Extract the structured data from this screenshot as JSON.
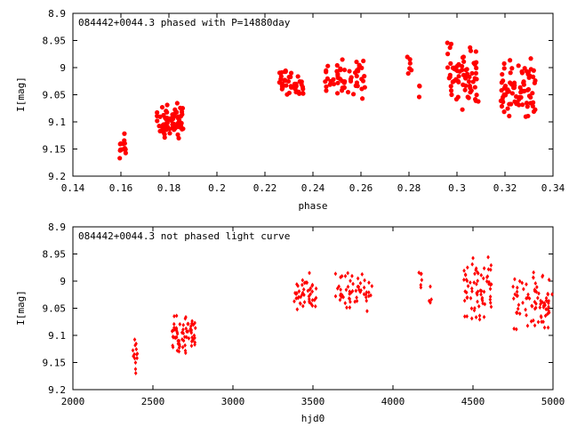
{
  "chart_data": [
    {
      "type": "scatter",
      "title": "084442+0044.3 phased with P=14880day",
      "xlabel": "phase",
      "ylabel": "I[mag]",
      "xlim": [
        0.14,
        0.34
      ],
      "ylim": [
        9.2,
        8.9
      ],
      "y_inverted": true,
      "grid": false,
      "marker": "filled-circle",
      "color": "#ff0000",
      "xticks": [
        "0.14",
        "0.16",
        "0.18",
        "0.2",
        "0.22",
        "0.24",
        "0.26",
        "0.28",
        "0.3",
        "0.32",
        "0.34"
      ],
      "yticks": [
        "8.9",
        "8.95",
        "9",
        "9.05",
        "9.1",
        "9.15",
        "9.2"
      ],
      "xtick_values": [
        0.14,
        0.16,
        0.18,
        0.2,
        0.22,
        0.24,
        0.26,
        0.28,
        0.3,
        0.32,
        0.34
      ],
      "ytick_values": [
        8.9,
        8.95,
        9.0,
        9.05,
        9.1,
        9.15,
        9.2
      ],
      "clusters": [
        {
          "x_range": [
            0.159,
            0.162
          ],
          "y_range": [
            9.11,
            9.18
          ],
          "n": 14
        },
        {
          "x_range": [
            0.175,
            0.186
          ],
          "y_range": [
            9.06,
            9.14
          ],
          "n": 70
        },
        {
          "x_range": [
            0.226,
            0.236
          ],
          "y_range": [
            9.0,
            9.06
          ],
          "n": 45
        },
        {
          "x_range": [
            0.245,
            0.262
          ],
          "y_range": [
            8.98,
            9.06
          ],
          "n": 55
        },
        {
          "x_range": [
            0.279,
            0.281
          ],
          "y_range": [
            8.97,
            9.03
          ],
          "n": 6
        },
        {
          "x_range": [
            0.284,
            0.285
          ],
          "y_range": [
            9.02,
            9.06
          ],
          "n": 3
        },
        {
          "x_range": [
            0.296,
            0.309
          ],
          "y_range": [
            8.95,
            9.08
          ],
          "n": 70
        },
        {
          "x_range": [
            0.318,
            0.333
          ],
          "y_range": [
            8.98,
            9.1
          ],
          "n": 80
        }
      ]
    },
    {
      "type": "scatter",
      "title": "084442+0044.3 not phased light curve",
      "xlabel": "hjd0",
      "ylabel": "I[mag]",
      "xlim": [
        2000,
        5000
      ],
      "ylim": [
        9.2,
        8.9
      ],
      "y_inverted": true,
      "grid": false,
      "marker": "filled-diamond",
      "color": "#ff0000",
      "xticks": [
        "2000",
        "2500",
        "3000",
        "3500",
        "4000",
        "4500",
        "5000"
      ],
      "yticks": [
        "8.9",
        "8.95",
        "9",
        "9.05",
        "9.1",
        "9.15",
        "9.2"
      ],
      "xtick_values": [
        2000,
        2500,
        3000,
        3500,
        4000,
        4500,
        5000
      ],
      "ytick_values": [
        8.9,
        8.95,
        9.0,
        9.05,
        9.1,
        9.15,
        9.2
      ],
      "clusters": [
        {
          "x_range": [
            2375,
            2405
          ],
          "y_range": [
            9.1,
            9.18
          ],
          "n": 14
        },
        {
          "x_range": [
            2620,
            2770
          ],
          "y_range": [
            9.06,
            9.14
          ],
          "n": 70
        },
        {
          "x_range": [
            3380,
            3520
          ],
          "y_range": [
            8.98,
            9.06
          ],
          "n": 45
        },
        {
          "x_range": [
            3640,
            3880
          ],
          "y_range": [
            8.98,
            9.06
          ],
          "n": 55
        },
        {
          "x_range": [
            4160,
            4180
          ],
          "y_range": [
            8.97,
            9.02
          ],
          "n": 6
        },
        {
          "x_range": [
            4220,
            4240
          ],
          "y_range": [
            9.0,
            9.06
          ],
          "n": 4
        },
        {
          "x_range": [
            4440,
            4620
          ],
          "y_range": [
            8.95,
            9.08
          ],
          "n": 70
        },
        {
          "x_range": [
            4750,
            5000
          ],
          "y_range": [
            8.98,
            9.1
          ],
          "n": 80
        }
      ]
    }
  ]
}
